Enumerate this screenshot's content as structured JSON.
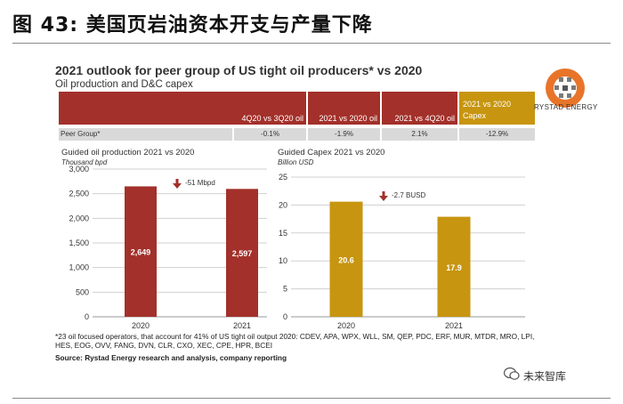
{
  "figure_title": "图 43:  美国页岩油资本开支与产量下降",
  "panel": {
    "title": "2021 outlook for peer group of US tight oil producers* vs 2020",
    "subtitle": "Oil production and D&C capex"
  },
  "table": {
    "headers": [
      "4Q20 vs 3Q20 oil",
      "2021 vs 2020 oil",
      "2021 vs 4Q20 oil",
      "2021 vs 2020 Capex"
    ],
    "row_label": "Peer Group*",
    "row_values": [
      "-0.1%",
      "-1.9%",
      "2.1%",
      "-12.9%"
    ]
  },
  "logo_text": "RYSTAD ENERGY",
  "colors": {
    "red": "#a3302a",
    "gold": "#c7950f",
    "grey": "#d9d9d9"
  },
  "chart_data": [
    {
      "type": "bar",
      "title": "Guided oil production 2021 vs 2020",
      "unit": "Thousand bpd",
      "categories": [
        "2020",
        "2021"
      ],
      "values": [
        2649,
        2597
      ],
      "value_labels": [
        "2,649",
        "2,597"
      ],
      "ylim": [
        0,
        3000
      ],
      "yticks": [
        0,
        500,
        1000,
        1500,
        2000,
        2500,
        3000
      ],
      "ytick_labels": [
        "0",
        "500",
        "1,000",
        "1,500",
        "2,000",
        "2,500",
        "3,000"
      ],
      "annotation": "-51 Mbpd",
      "color": "#a3302a"
    },
    {
      "type": "bar",
      "title": "Guided Capex 2021 vs 2020",
      "unit": "Billion USD",
      "categories": [
        "2020",
        "2021"
      ],
      "values": [
        20.6,
        17.9
      ],
      "value_labels": [
        "20.6",
        "17.9"
      ],
      "ylim": [
        0,
        25
      ],
      "yticks": [
        0,
        5,
        10,
        15,
        20,
        25
      ],
      "ytick_labels": [
        "0",
        "5",
        "10",
        "15",
        "20",
        "25"
      ],
      "annotation": "-2.7 BUSD",
      "color": "#c7950f"
    }
  ],
  "footnote": "*23 oil focused operators, that account for 41% of US tight oil output 2020: CDEV, APA, WPX, WLL, SM, QEP, PDC, ERF, MUR, MTDR, MRO, LPI, HES, EOG, OVV, FANG, DVN, CLR, CXO, XEC, CPE, HPR, BCEI",
  "source": "Source: Rystad Energy research and analysis, company reporting",
  "watermark": "未来智库"
}
